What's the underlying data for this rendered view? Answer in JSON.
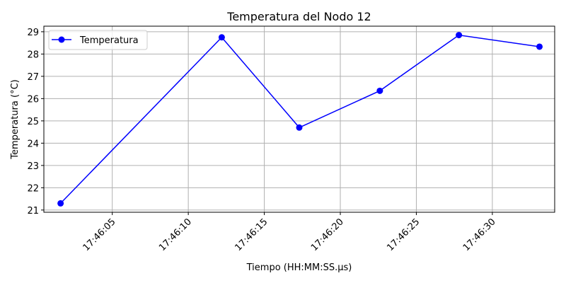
{
  "chart_data": {
    "type": "line",
    "title": "Temperatura del Nodo 12",
    "xlabel": "Tiempo (HH:MM:SS.µs)",
    "ylabel": "Temperatura (°C)",
    "x": [
      "17:46:01.6",
      "17:46:12.2",
      "17:46:17.3",
      "17:46:22.6",
      "17:46:27.8",
      "17:46:33.1"
    ],
    "series": [
      {
        "name": "Temperatura",
        "color": "#0000ff",
        "marker": "circle",
        "values": [
          21.3,
          28.75,
          24.7,
          26.35,
          28.85,
          28.33
        ]
      }
    ],
    "xlim": [
      "17:46:00.5",
      "17:46:34.1"
    ],
    "ylim": [
      20.9,
      29.25
    ],
    "xticks": [
      "17:46:05",
      "17:46:10",
      "17:46:15",
      "17:46:20",
      "17:46:25",
      "17:46:30"
    ],
    "yticks": [
      21,
      22,
      23,
      24,
      25,
      26,
      27,
      28,
      29
    ],
    "grid": true,
    "legend_position": "top-left"
  }
}
